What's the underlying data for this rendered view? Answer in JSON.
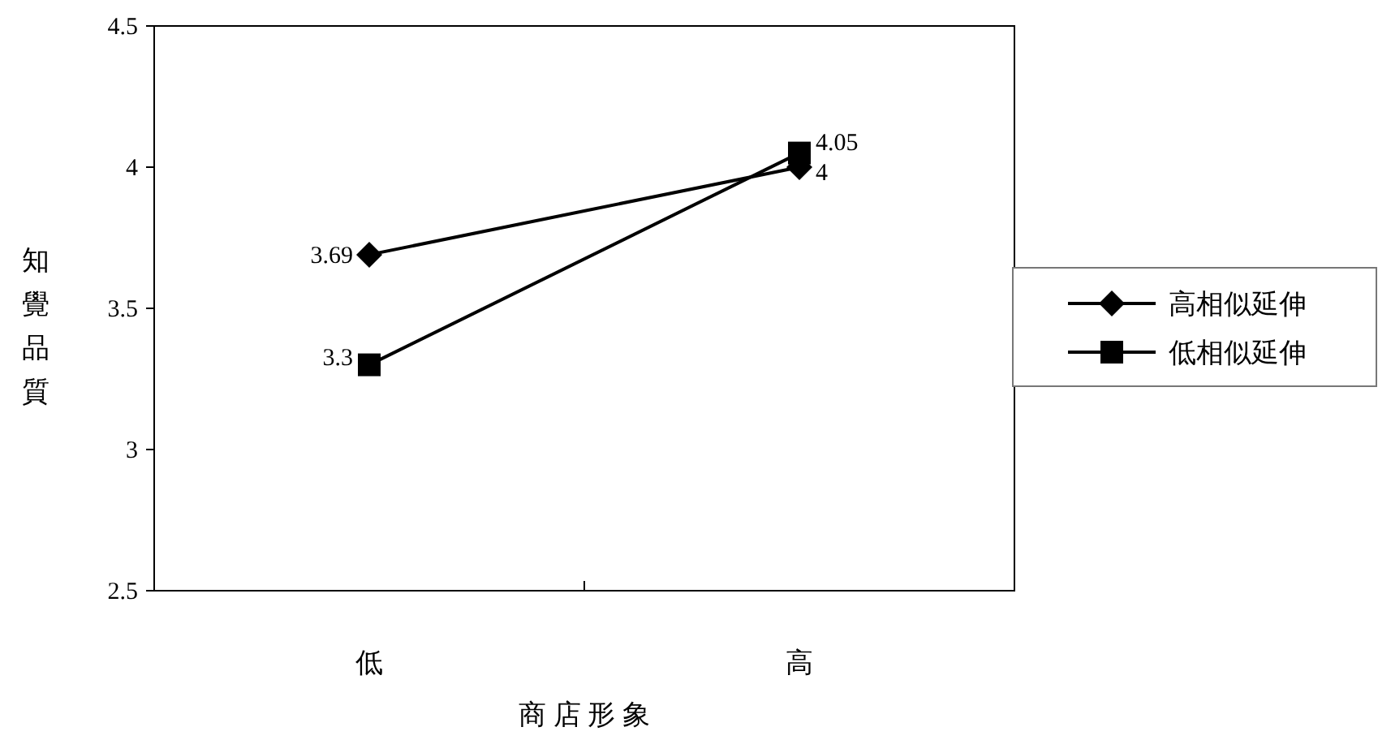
{
  "chart_data": {
    "type": "line",
    "xlabel": "商 店 形 象",
    "ylabel": "知覺品質",
    "categories": [
      "低",
      "高"
    ],
    "series": [
      {
        "name": "高相似延伸",
        "color": "#000000",
        "marker": "diamond",
        "values": [
          3.69,
          4
        ]
      },
      {
        "name": "低相似延伸",
        "color": "#000000",
        "marker": "square",
        "values": [
          3.3,
          4.05
        ]
      }
    ],
    "ylim": [
      2.5,
      4.5
    ],
    "yticks": [
      2.5,
      3,
      3.5,
      4,
      4.5
    ],
    "grid": false,
    "legend": "right",
    "data_labels": true
  }
}
